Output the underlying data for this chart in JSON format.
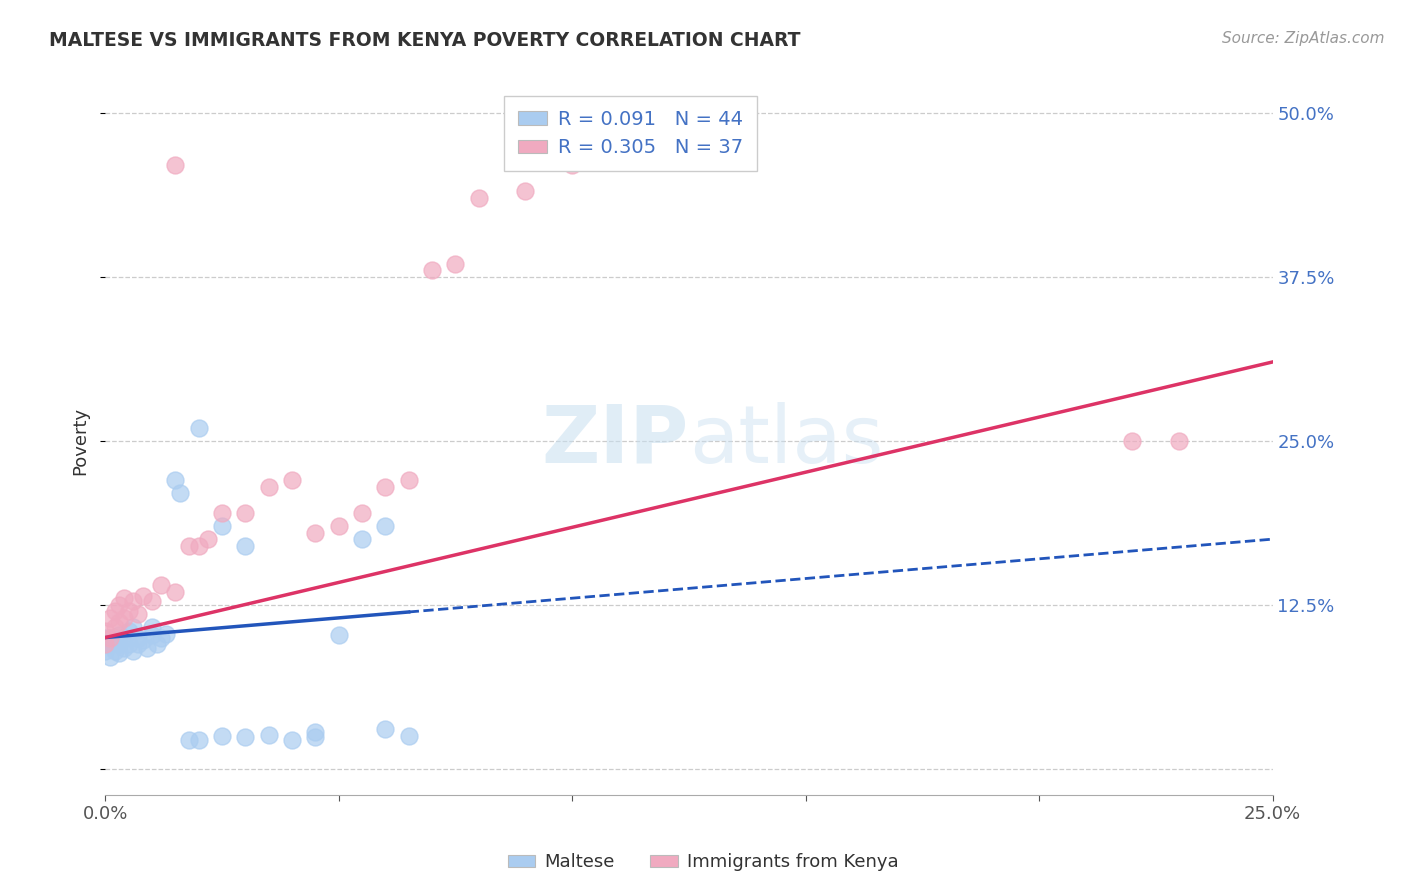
{
  "title": "MALTESE VS IMMIGRANTS FROM KENYA POVERTY CORRELATION CHART",
  "source": "Source: ZipAtlas.com",
  "ylabel": "Poverty",
  "watermark": "ZIPatlas",
  "xmin": 0.0,
  "xmax": 0.25,
  "ymin": -0.02,
  "ymax": 0.52,
  "blue_R": 0.091,
  "blue_N": 44,
  "pink_R": 0.305,
  "pink_N": 37,
  "blue_color": "#aaccf0",
  "pink_color": "#f0aac0",
  "blue_line_color": "#2255bb",
  "pink_line_color": "#dd3366",
  "legend_label_blue": "Maltese",
  "legend_label_pink": "Immigrants from Kenya",
  "blue_x": [
    0.0,
    0.0,
    0.0,
    0.001,
    0.001,
    0.001,
    0.002,
    0.002,
    0.003,
    0.003,
    0.003,
    0.004,
    0.004,
    0.005,
    0.005,
    0.006,
    0.006,
    0.007,
    0.007,
    0.008,
    0.009,
    0.01,
    0.01,
    0.011,
    0.012,
    0.013,
    0.015,
    0.016,
    0.018,
    0.02,
    0.025,
    0.03,
    0.035,
    0.04,
    0.045,
    0.05,
    0.055,
    0.06,
    0.065,
    0.02,
    0.025,
    0.03,
    0.045,
    0.06
  ],
  "blue_y": [
    0.09,
    0.095,
    0.1,
    0.085,
    0.095,
    0.1,
    0.09,
    0.098,
    0.088,
    0.095,
    0.102,
    0.092,
    0.1,
    0.095,
    0.105,
    0.09,
    0.108,
    0.095,
    0.1,
    0.098,
    0.092,
    0.102,
    0.108,
    0.095,
    0.1,
    0.103,
    0.22,
    0.21,
    0.022,
    0.022,
    0.025,
    0.024,
    0.026,
    0.022,
    0.024,
    0.102,
    0.175,
    0.185,
    0.025,
    0.26,
    0.185,
    0.17,
    0.028,
    0.03
  ],
  "pink_x": [
    0.0,
    0.0,
    0.001,
    0.001,
    0.002,
    0.002,
    0.003,
    0.003,
    0.004,
    0.004,
    0.005,
    0.006,
    0.007,
    0.008,
    0.01,
    0.012,
    0.015,
    0.015,
    0.018,
    0.02,
    0.022,
    0.025,
    0.03,
    0.035,
    0.04,
    0.045,
    0.05,
    0.055,
    0.06,
    0.065,
    0.07,
    0.075,
    0.08,
    0.09,
    0.1,
    0.22,
    0.23
  ],
  "pink_y": [
    0.095,
    0.105,
    0.1,
    0.115,
    0.108,
    0.12,
    0.112,
    0.125,
    0.115,
    0.13,
    0.12,
    0.128,
    0.118,
    0.132,
    0.128,
    0.14,
    0.135,
    0.46,
    0.17,
    0.17,
    0.175,
    0.195,
    0.195,
    0.215,
    0.22,
    0.18,
    0.185,
    0.195,
    0.215,
    0.22,
    0.38,
    0.385,
    0.435,
    0.44,
    0.46,
    0.25,
    0.25
  ],
  "blue_line_solid_xmax": 0.065,
  "blue_line_x0": 0.0,
  "blue_line_x1": 0.25,
  "blue_line_y0": 0.1,
  "blue_line_y1": 0.175,
  "pink_line_x0": 0.0,
  "pink_line_x1": 0.25,
  "pink_line_y0": 0.1,
  "pink_line_y1": 0.31
}
